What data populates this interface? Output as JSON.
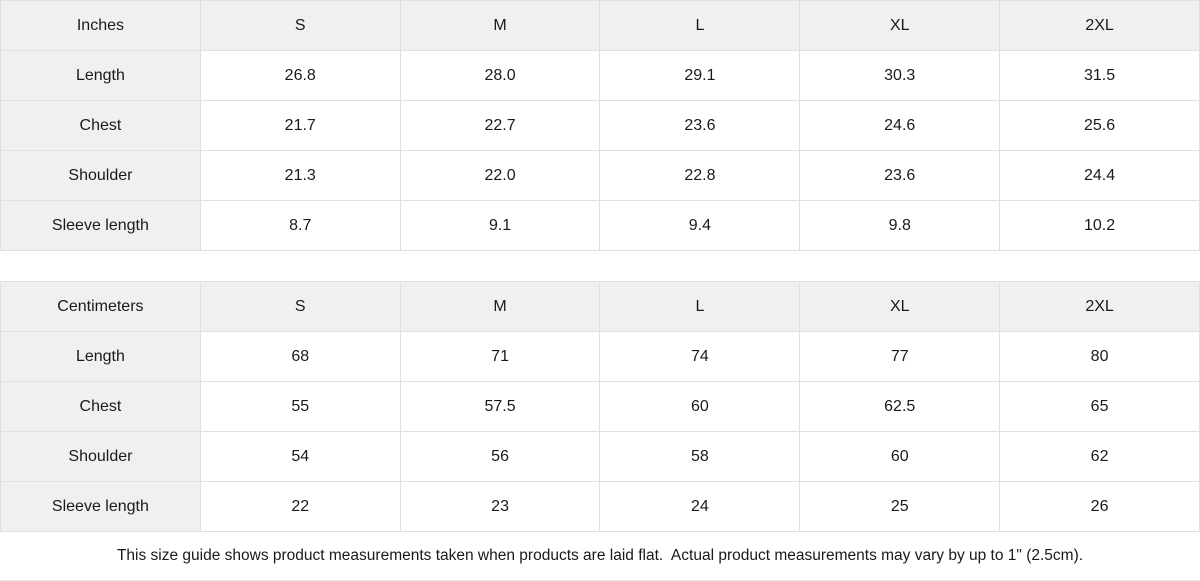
{
  "colors": {
    "header_bg": "#f0f0f0",
    "label_bg": "#f0f0f0",
    "border": "#e0e0e0",
    "text": "#1a1a1a",
    "cell_bg": "#ffffff"
  },
  "tables": [
    {
      "unit_label": "Inches",
      "sizes": [
        "S",
        "M",
        "L",
        "XL",
        "2XL"
      ],
      "rows": [
        {
          "label": "Length",
          "values": [
            "26.8",
            "28.0",
            "29.1",
            "30.3",
            "31.5"
          ]
        },
        {
          "label": "Chest",
          "values": [
            "21.7",
            "22.7",
            "23.6",
            "24.6",
            "25.6"
          ]
        },
        {
          "label": "Shoulder",
          "values": [
            "21.3",
            "22.0",
            "22.8",
            "23.6",
            "24.4"
          ]
        },
        {
          "label": "Sleeve length",
          "values": [
            "8.7",
            "9.1",
            "9.4",
            "9.8",
            "10.2"
          ]
        }
      ]
    },
    {
      "unit_label": "Centimeters",
      "sizes": [
        "S",
        "M",
        "L",
        "XL",
        "2XL"
      ],
      "rows": [
        {
          "label": "Length",
          "values": [
            "68",
            "71",
            "74",
            "77",
            "80"
          ]
        },
        {
          "label": "Chest",
          "values": [
            "55",
            "57.5",
            "60",
            "62.5",
            "65"
          ]
        },
        {
          "label": "Shoulder",
          "values": [
            "54",
            "56",
            "58",
            "60",
            "62"
          ]
        },
        {
          "label": "Sleeve length",
          "values": [
            "22",
            "23",
            "24",
            "25",
            "26"
          ]
        }
      ]
    }
  ],
  "footer": {
    "note": "This size guide shows product measurements taken when products are laid flat.  Actual product measurements may vary by up to 1\" (2.5cm)."
  },
  "chart_data": [
    {
      "type": "table",
      "title": "Size guide (Inches)",
      "columns": [
        "Inches",
        "S",
        "M",
        "L",
        "XL",
        "2XL"
      ],
      "rows": [
        [
          "Length",
          26.8,
          28.0,
          29.1,
          30.3,
          31.5
        ],
        [
          "Chest",
          21.7,
          22.7,
          23.6,
          24.6,
          25.6
        ],
        [
          "Shoulder",
          21.3,
          22.0,
          22.8,
          23.6,
          24.4
        ],
        [
          "Sleeve length",
          8.7,
          9.1,
          9.4,
          9.8,
          10.2
        ]
      ]
    },
    {
      "type": "table",
      "title": "Size guide (Centimeters)",
      "columns": [
        "Centimeters",
        "S",
        "M",
        "L",
        "XL",
        "2XL"
      ],
      "rows": [
        [
          "Length",
          68,
          71,
          74,
          77,
          80
        ],
        [
          "Chest",
          55,
          57.5,
          60,
          62.5,
          65
        ],
        [
          "Shoulder",
          54,
          56,
          58,
          60,
          62
        ],
        [
          "Sleeve length",
          22,
          23,
          24,
          25,
          26
        ]
      ]
    }
  ]
}
